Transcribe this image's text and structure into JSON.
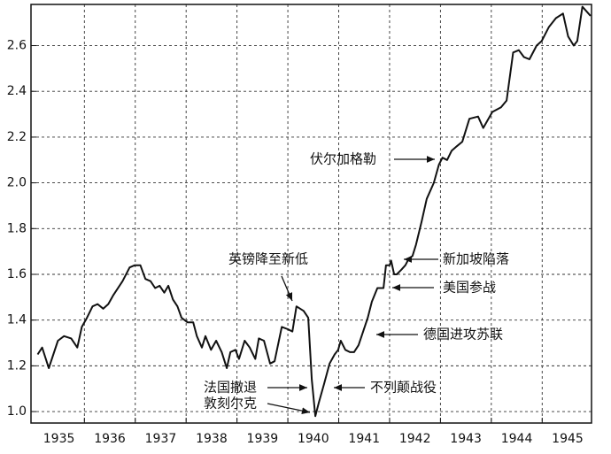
{
  "chart_data": {
    "type": "line",
    "x": [
      1935.08,
      1935.17,
      1935.3,
      1935.48,
      1935.6,
      1935.74,
      1935.86,
      1935.95,
      1936.05,
      1936.16,
      1936.26,
      1936.37,
      1936.47,
      1936.57,
      1936.75,
      1936.89,
      1936.99,
      1937.1,
      1937.2,
      1937.3,
      1937.39,
      1937.48,
      1937.57,
      1937.65,
      1937.74,
      1937.83,
      1937.91,
      1938.03,
      1938.14,
      1938.21,
      1938.31,
      1938.38,
      1938.49,
      1938.59,
      1938.7,
      1938.8,
      1938.87,
      1938.97,
      1939.04,
      1939.15,
      1939.25,
      1939.36,
      1939.43,
      1939.53,
      1939.65,
      1939.74,
      1939.88,
      1940.0,
      1940.09,
      1940.17,
      1940.31,
      1940.4,
      1940.47,
      1940.54,
      1940.61,
      1940.71,
      1940.82,
      1940.92,
      1940.99,
      1941.04,
      1941.13,
      1941.22,
      1941.3,
      1941.39,
      1941.48,
      1941.57,
      1941.65,
      1941.76,
      1941.88,
      1941.93,
      1942.0,
      1942.03,
      1942.09,
      1942.14,
      1942.23,
      1942.31,
      1942.38,
      1942.45,
      1942.52,
      1942.63,
      1942.73,
      1942.87,
      1942.97,
      1943.04,
      1943.13,
      1943.22,
      1943.32,
      1943.43,
      1943.57,
      1943.74,
      1943.84,
      1944.02,
      1944.19,
      1944.3,
      1944.43,
      1944.54,
      1944.64,
      1944.75,
      1944.89,
      1944.99,
      1945.13,
      1945.27,
      1945.41,
      1945.51,
      1945.62,
      1945.69,
      1945.79,
      1945.95
    ],
    "values": [
      1.25,
      1.28,
      1.19,
      1.31,
      1.33,
      1.32,
      1.28,
      1.37,
      1.41,
      1.46,
      1.47,
      1.45,
      1.47,
      1.51,
      1.57,
      1.63,
      1.64,
      1.64,
      1.58,
      1.57,
      1.54,
      1.55,
      1.52,
      1.55,
      1.49,
      1.46,
      1.41,
      1.39,
      1.39,
      1.33,
      1.28,
      1.33,
      1.27,
      1.31,
      1.26,
      1.19,
      1.26,
      1.27,
      1.23,
      1.31,
      1.28,
      1.23,
      1.32,
      1.31,
      1.21,
      1.22,
      1.37,
      1.36,
      1.35,
      1.46,
      1.44,
      1.41,
      1.14,
      0.98,
      1.04,
      1.12,
      1.21,
      1.25,
      1.27,
      1.31,
      1.27,
      1.26,
      1.26,
      1.29,
      1.35,
      1.41,
      1.48,
      1.54,
      1.54,
      1.64,
      1.64,
      1.66,
      1.6,
      1.6,
      1.62,
      1.64,
      1.67,
      1.68,
      1.73,
      1.83,
      1.93,
      2.0,
      2.08,
      2.11,
      2.1,
      2.14,
      2.16,
      2.18,
      2.28,
      2.29,
      2.24,
      2.31,
      2.33,
      2.36,
      2.57,
      2.58,
      2.55,
      2.54,
      2.6,
      2.62,
      2.68,
      2.72,
      2.74,
      2.64,
      2.6,
      2.62,
      2.77,
      2.73
    ],
    "color": "#111111",
    "xlim": [
      1934.95,
      1945.97
    ],
    "xticks": [
      {
        "value": 1935.5,
        "label": "1935"
      },
      {
        "value": 1936.5,
        "label": "1936"
      },
      {
        "value": 1937.5,
        "label": "1937"
      },
      {
        "value": 1938.5,
        "label": "1938"
      },
      {
        "value": 1939.5,
        "label": "1939"
      },
      {
        "value": 1940.5,
        "label": "1940"
      },
      {
        "value": 1941.5,
        "label": "1941"
      },
      {
        "value": 1942.5,
        "label": "1942"
      },
      {
        "value": 1943.5,
        "label": "1943"
      },
      {
        "value": 1944.5,
        "label": "1944"
      },
      {
        "value": 1945.5,
        "label": "1945"
      }
    ],
    "x_gridlines": [
      1936,
      1937,
      1938,
      1939,
      1940,
      1941,
      1942,
      1943,
      1944,
      1945
    ],
    "ylim": [
      0.95,
      2.78
    ],
    "yticks": [
      {
        "value": 1,
        "label": "1.0"
      },
      {
        "value": 1.2,
        "label": "1.2"
      },
      {
        "value": 1.4,
        "label": "1.4"
      },
      {
        "value": 1.6,
        "label": "1.6"
      },
      {
        "value": 1.8,
        "label": "1.8"
      },
      {
        "value": 2,
        "label": "2.0"
      },
      {
        "value": 2.2,
        "label": "2.2"
      },
      {
        "value": 2.4,
        "label": "2.4"
      },
      {
        "value": 2.6,
        "label": "2.6"
      }
    ],
    "grid": true,
    "annotations": [
      "伏尔加格勒",
      "新加坡陷落",
      "美国参战",
      "德国进攻苏联",
      "英镑降至新低",
      "法国撤退",
      "敦刻尔克",
      "不列颠战役"
    ]
  }
}
